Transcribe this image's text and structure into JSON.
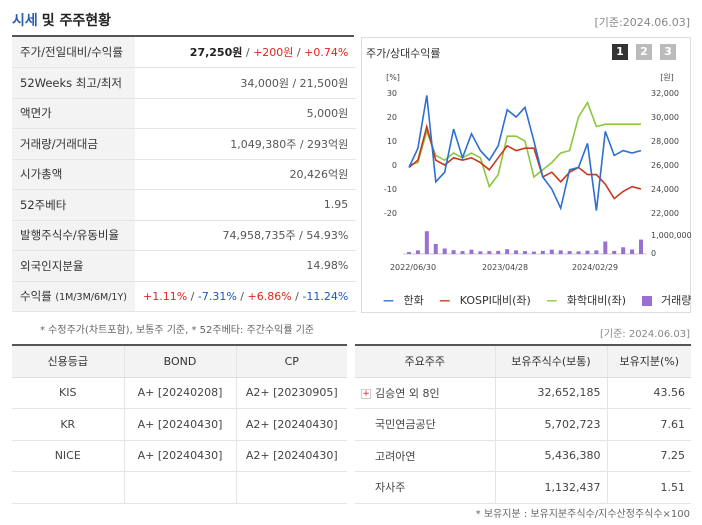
{
  "header": {
    "title_a": "시세",
    "title_b": "및 주주현황",
    "date": "[기준:2024.06.03]"
  },
  "quote": {
    "rows": [
      {
        "label": "주가/전일대비/수익률",
        "price": "27,250원",
        "change": "+200원",
        "pct": "+0.74%"
      },
      {
        "label": "52Weeks 최고/최저",
        "value": "34,000원 / 21,500원"
      },
      {
        "label": "액면가",
        "value": "5,000원"
      },
      {
        "label": "거래량/거래대금",
        "value": "1,049,380주 / 293억원"
      },
      {
        "label": "시가총액",
        "value": "20,426억원"
      },
      {
        "label": "52주베타",
        "value": "1.95"
      },
      {
        "label": "발행주식수/유동비율",
        "value": "74,958,735주 / 54.93%"
      },
      {
        "label": "외국인지분율",
        "value": "14.98%"
      }
    ],
    "returns": {
      "label": "수익률",
      "label_sub": "(1M/3M/6M/1Y)",
      "r1": "+1.11%",
      "r2": "-7.31%",
      "r3": "+6.86%",
      "r4": "-11.24%"
    },
    "note": "* 수정주가(차트포함), 보통주 기준, * 52주베타: 주간수익률 기준"
  },
  "chart_panel": {
    "title": "주가/상대수익률",
    "buttons": [
      "1",
      "2",
      "3"
    ],
    "left_unit": "[%]",
    "right_unit": "[원]",
    "legend": {
      "s1": "한화",
      "s2": "KOSPI대비(좌)",
      "s3": "화학대비(좌)",
      "s4": "거래량"
    },
    "date_below": "[기준: 2024.06.03]"
  },
  "chart_data": {
    "type": "line",
    "x_ticks": [
      "2022/06/30",
      "2023/04/28",
      "2024/02/29"
    ],
    "y_left": {
      "range": [
        -20,
        30
      ],
      "ticks": [
        "30",
        "20",
        "10",
        "0",
        "-10",
        "-20"
      ]
    },
    "y_right": {
      "range": [
        22000,
        32000
      ],
      "ticks": [
        "32,000",
        "30,000",
        "28,000",
        "26,000",
        "24,000",
        "22,000"
      ]
    },
    "volume_axis": {
      "range": [
        0,
        1000000
      ],
      "ticks": [
        "1,000,000",
        "0"
      ]
    },
    "colors": {
      "price": "#2e6fd0",
      "kospi": "#c8381f",
      "chem": "#8dc63f",
      "volume": "#9b6fd1"
    },
    "series": [
      {
        "name": "한화",
        "axis": "left",
        "values": [
          -1,
          7,
          29,
          -7,
          -3,
          15,
          3,
          13,
          6,
          2,
          8,
          23,
          20,
          24,
          10,
          -5,
          -10,
          -18,
          -2,
          -1,
          9,
          -19,
          14,
          4,
          6,
          5,
          6
        ]
      },
      {
        "name": "KOSPI대비(좌)",
        "axis": "left",
        "values": [
          -1,
          2,
          16,
          2,
          0,
          3,
          2,
          3,
          1,
          -2,
          3,
          8,
          6,
          7,
          7,
          -5,
          -3,
          -7,
          -3,
          -1,
          -4,
          -4,
          -8,
          -14,
          -11,
          -9,
          -10
        ]
      },
      {
        "name": "화학대비(좌)",
        "axis": "left",
        "values": [
          0,
          1,
          14,
          4,
          2,
          5,
          3,
          5,
          3,
          -9,
          -4,
          12,
          12,
          10,
          -5,
          -2,
          1,
          5,
          6,
          20,
          26,
          16,
          17,
          17,
          17,
          17,
          17
        ]
      },
      {
        "name": "거래량",
        "axis": "volume",
        "values": [
          80000,
          150000,
          950000,
          420000,
          230000,
          160000,
          120000,
          180000,
          110000,
          120000,
          130000,
          200000,
          150000,
          120000,
          100000,
          130000,
          180000,
          150000,
          120000,
          110000,
          140000,
          150000,
          520000,
          130000,
          280000,
          190000,
          600000
        ]
      }
    ]
  },
  "credit": {
    "headers": [
      "신용등급",
      "BOND",
      "CP"
    ],
    "rows": [
      [
        "KIS",
        "A+ [20240208]",
        "A2+ [20230905]"
      ],
      [
        "KR",
        "A+ [20240430]",
        "A2+ [20240430]"
      ],
      [
        "NICE",
        "A+ [20240430]",
        "A2+ [20240430]"
      ],
      [
        "",
        "",
        ""
      ]
    ]
  },
  "holders": {
    "headers": [
      "주요주주",
      "보유주식수(보통)",
      "보유지분(%)"
    ],
    "rows": [
      [
        "김승연 외 8인",
        "32,652,185",
        "43.56"
      ],
      [
        "국민연금공단",
        "5,702,723",
        "7.61"
      ],
      [
        "고려아연",
        "5,436,380",
        "7.25"
      ],
      [
        "자사주",
        "1,132,437",
        "1.51"
      ]
    ],
    "note": "* 보유지분 : 보유지분주식수/지수산정주식수×100"
  }
}
